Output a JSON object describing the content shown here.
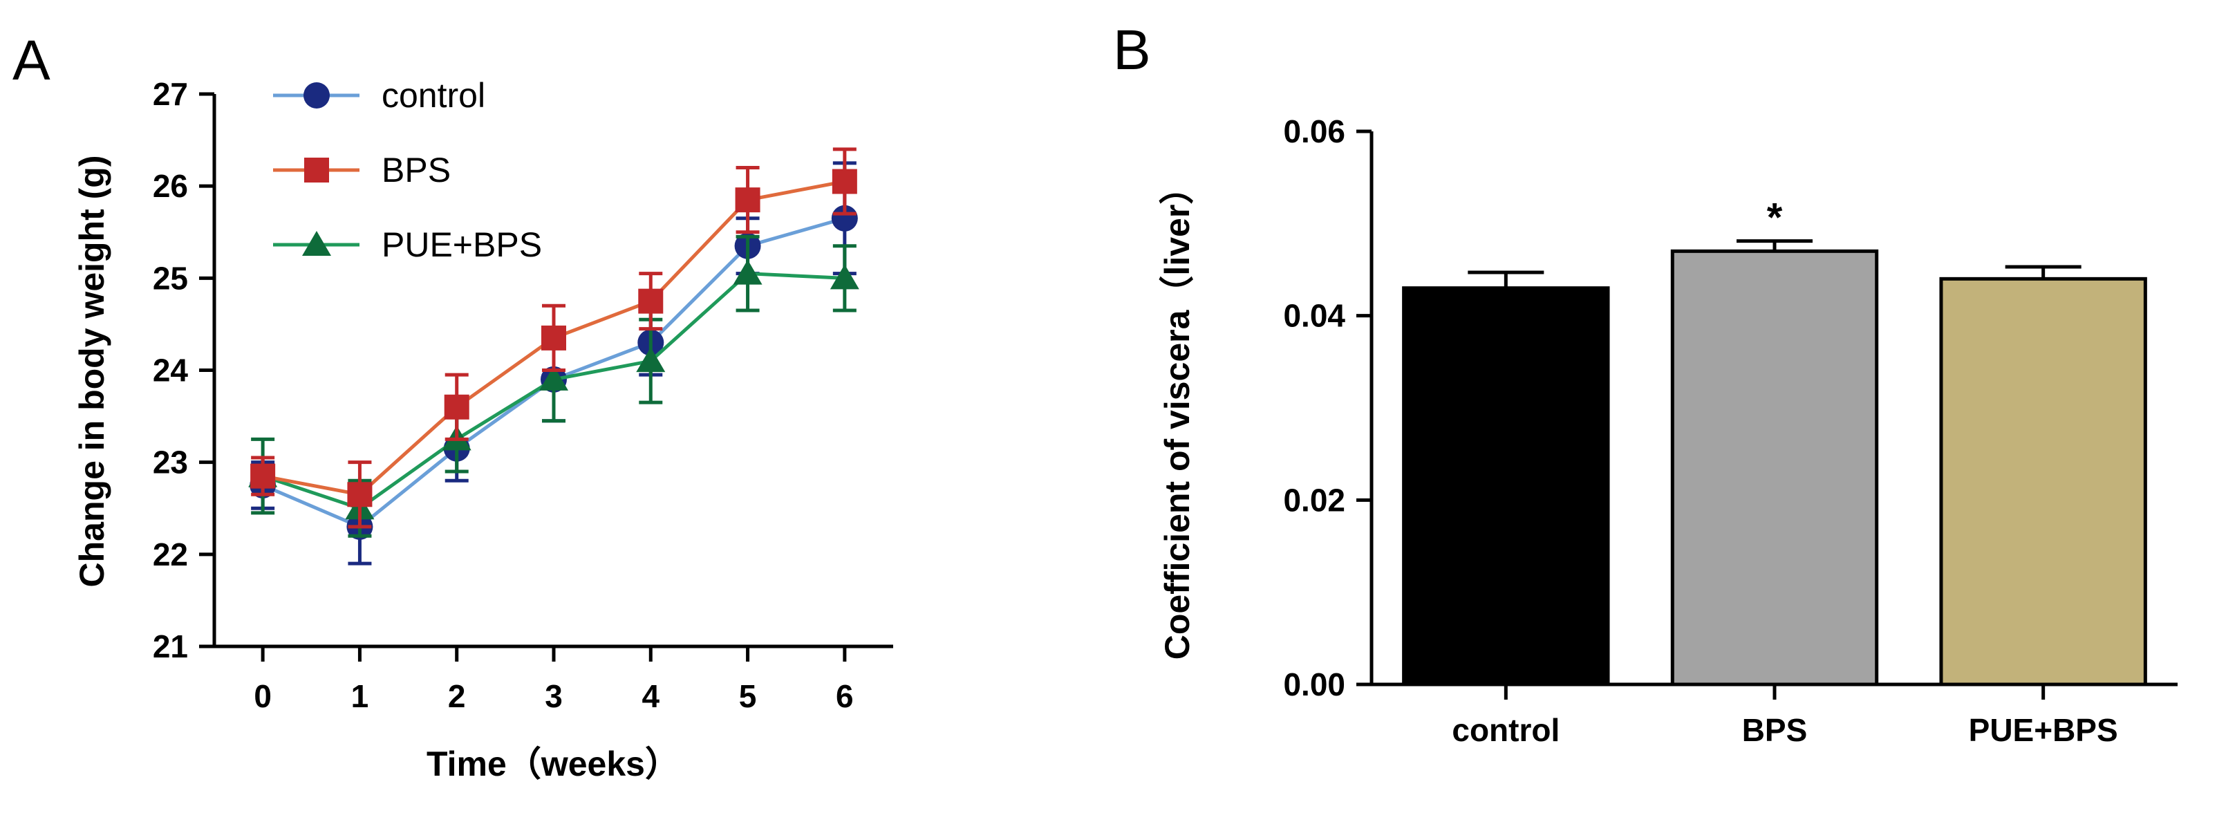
{
  "chart_data": [
    {
      "panel": "A",
      "type": "line",
      "title": "",
      "xlabel": "Time（weeks）",
      "ylabel": "Change in body weight (g)",
      "x": [
        0,
        1,
        2,
        3,
        4,
        5,
        6
      ],
      "xlim": [
        -0.5,
        6.5
      ],
      "xticks": [
        "0",
        "1",
        "2",
        "3",
        "4",
        "5",
        "6"
      ],
      "ylim": [
        21,
        27
      ],
      "yticks": [
        "21",
        "22",
        "23",
        "24",
        "25",
        "26",
        "27"
      ],
      "grid": false,
      "legend_position": "top-left",
      "series": [
        {
          "name": "control",
          "color": "#1a2a80",
          "line_color": "#6a9fd8",
          "marker": "circle",
          "values": [
            22.75,
            22.3,
            23.15,
            23.9,
            24.3,
            25.35,
            25.65
          ],
          "errors": [
            0.25,
            0.4,
            0.35,
            0.45,
            0.35,
            0.3,
            0.6
          ]
        },
        {
          "name": "BPS",
          "color": "#c0282a",
          "line_color": "#e06a3c",
          "marker": "square",
          "values": [
            22.85,
            22.65,
            23.6,
            24.35,
            24.75,
            25.85,
            26.05
          ],
          "errors": [
            0.2,
            0.35,
            0.35,
            0.35,
            0.3,
            0.35,
            0.35
          ]
        },
        {
          "name": "PUE+BPS",
          "color": "#0e6b3a",
          "line_color": "#1f9a5a",
          "marker": "triangle",
          "values": [
            22.85,
            22.5,
            23.25,
            23.9,
            24.1,
            25.05,
            25.0
          ],
          "errors": [
            0.4,
            0.3,
            0.35,
            0.45,
            0.45,
            0.4,
            0.35
          ]
        }
      ]
    },
    {
      "panel": "B",
      "type": "bar",
      "title": "",
      "xlabel": "",
      "ylabel": "Coefficient of viscera（liver）",
      "categories": [
        "control",
        "BPS",
        "PUE+BPS"
      ],
      "values": [
        0.043,
        0.047,
        0.044
      ],
      "errors": [
        0.0017,
        0.0011,
        0.0013
      ],
      "bar_colors": [
        "#000000",
        "#a3a3a3",
        "#c2b27a"
      ],
      "ylim": [
        0,
        0.06
      ],
      "yticks": [
        "0.00",
        "0.02",
        "0.04",
        "0.06"
      ],
      "grid": false,
      "annotations": [
        {
          "category": "BPS",
          "text": "*"
        }
      ]
    }
  ]
}
